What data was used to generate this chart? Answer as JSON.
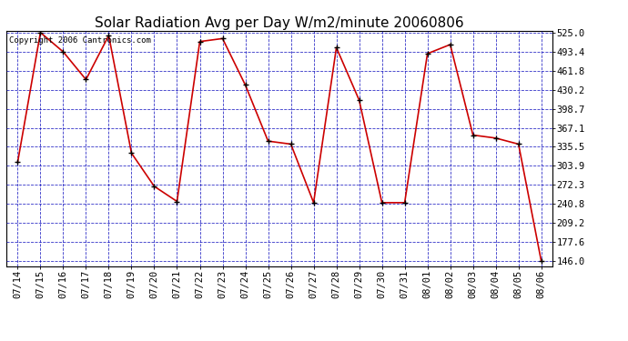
{
  "title": "Solar Radiation Avg per Day W/m2/minute 20060806",
  "copyright": "Copyright 2006 Cantronics.com",
  "dates": [
    "07/14",
    "07/15",
    "07/16",
    "07/17",
    "07/18",
    "07/19",
    "07/20",
    "07/21",
    "07/22",
    "07/23",
    "07/24",
    "07/25",
    "07/26",
    "07/27",
    "07/28",
    "07/29",
    "07/30",
    "07/31",
    "08/01",
    "08/02",
    "08/03",
    "08/04",
    "08/05",
    "08/06"
  ],
  "values": [
    310,
    525,
    493,
    447,
    520,
    325,
    270,
    245,
    510,
    515,
    438,
    345,
    340,
    243,
    500,
    413,
    243,
    243,
    490,
    505,
    355,
    350,
    340,
    146
  ],
  "ymin": 146.0,
  "ymax": 525.0,
  "yticks": [
    146.0,
    177.6,
    209.2,
    240.8,
    272.3,
    303.9,
    335.5,
    367.1,
    398.7,
    430.2,
    461.8,
    493.4,
    525.0
  ],
  "line_color": "#cc0000",
  "marker_color": "#000000",
  "bg_color": "#ffffff",
  "plot_bg_color": "#ffffff",
  "grid_color": "#0000bb",
  "title_fontsize": 11,
  "tick_fontsize": 7.5,
  "copyright_fontsize": 6.5
}
